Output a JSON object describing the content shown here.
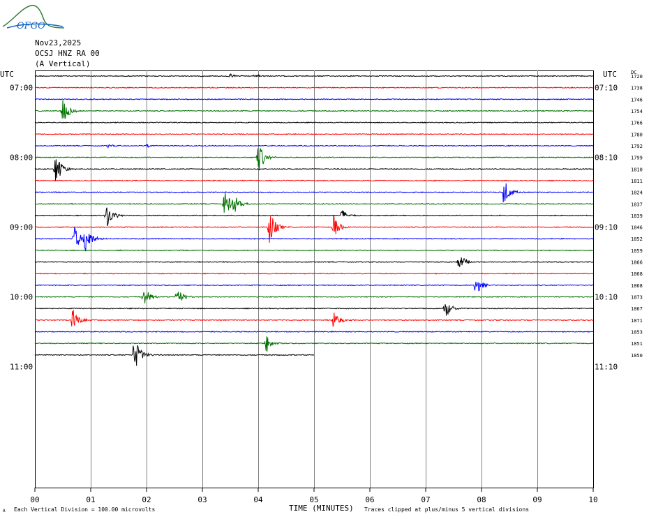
{
  "logo": {
    "text": "OFGO",
    "icon": "mountain-logo-icon"
  },
  "header": {
    "date": "Nov23,2025",
    "station": "OCSJ HNZ RA 00",
    "component": "(A Vertical)"
  },
  "axis": {
    "left_label": "UTC",
    "right_label": "UTC",
    "dc_label": "DC",
    "xlabel": "TIME (MINUTES)",
    "xticks": [
      "00",
      "01",
      "02",
      "03",
      "04",
      "05",
      "06",
      "07",
      "08",
      "09",
      "10"
    ],
    "left_hours": [
      "07:00",
      "08:00",
      "09:00",
      "10:00",
      "11:00"
    ],
    "right_hours": [
      "07:10",
      "08:10",
      "09:10",
      "10:10",
      "11:10"
    ]
  },
  "footer": {
    "scale_note": "Each Vertical Division =  100.00 microvolts",
    "clip_note": "Traces clipped at plus/minus 5 vertical divisions",
    "corner_mark": "A"
  },
  "colors": {
    "trace_cycle": [
      "#000000",
      "#ff0000",
      "#0000ff",
      "#007000"
    ],
    "grid": "#808080"
  },
  "chart_data": {
    "type": "line",
    "title": "",
    "xlabel": "TIME (MINUTES)",
    "ylabel": "UTC",
    "xlim": [
      0,
      10
    ],
    "rows_per_hour": 6,
    "start_time": "06:50",
    "last_row_end_minute": 5,
    "dc_offsets": [
      "1720",
      "1738",
      "1746",
      "1754",
      "1766",
      "1780",
      "1792",
      "1799",
      "1810",
      "1811",
      "1824",
      "1837",
      "1839",
      "1846",
      "1852",
      "1859",
      "1866",
      "1868",
      "1868",
      "1873",
      "1867",
      "1871",
      "1853",
      "1851",
      "1850"
    ],
    "events": [
      {
        "row": 0,
        "minute": 3.5,
        "amp": 0.2
      },
      {
        "row": 0,
        "minute": 3.95,
        "amp": 0.15
      },
      {
        "row": 3,
        "minute": 0.5,
        "amp": 1.1
      },
      {
        "row": 6,
        "minute": 1.3,
        "amp": 0.15
      },
      {
        "row": 6,
        "minute": 2.0,
        "amp": 0.15
      },
      {
        "row": 7,
        "minute": 4.0,
        "amp": 1.4
      },
      {
        "row": 8,
        "minute": 0.37,
        "amp": 1.5
      },
      {
        "row": 10,
        "minute": 8.4,
        "amp": 1.2
      },
      {
        "row": 11,
        "minute": 3.4,
        "amp": 1.2
      },
      {
        "row": 11,
        "minute": 3.55,
        "amp": 1.0
      },
      {
        "row": 12,
        "minute": 1.28,
        "amp": 1.2
      },
      {
        "row": 12,
        "minute": 5.5,
        "amp": 0.5
      },
      {
        "row": 13,
        "minute": 4.2,
        "amp": 1.5
      },
      {
        "row": 13,
        "minute": 5.35,
        "amp": 1.0
      },
      {
        "row": 14,
        "minute": 0.7,
        "amp": 1.2
      },
      {
        "row": 14,
        "minute": 0.9,
        "amp": 1.5
      },
      {
        "row": 16,
        "minute": 7.6,
        "amp": 0.7
      },
      {
        "row": 18,
        "minute": 7.9,
        "amp": 0.9
      },
      {
        "row": 19,
        "minute": 1.95,
        "amp": 0.9
      },
      {
        "row": 19,
        "minute": 2.55,
        "amp": 0.8
      },
      {
        "row": 20,
        "minute": 7.35,
        "amp": 0.8
      },
      {
        "row": 21,
        "minute": 0.68,
        "amp": 1.0
      },
      {
        "row": 21,
        "minute": 5.35,
        "amp": 0.8
      },
      {
        "row": 23,
        "minute": 4.15,
        "amp": 0.8
      },
      {
        "row": 24,
        "minute": 1.78,
        "amp": 1.6
      }
    ]
  }
}
